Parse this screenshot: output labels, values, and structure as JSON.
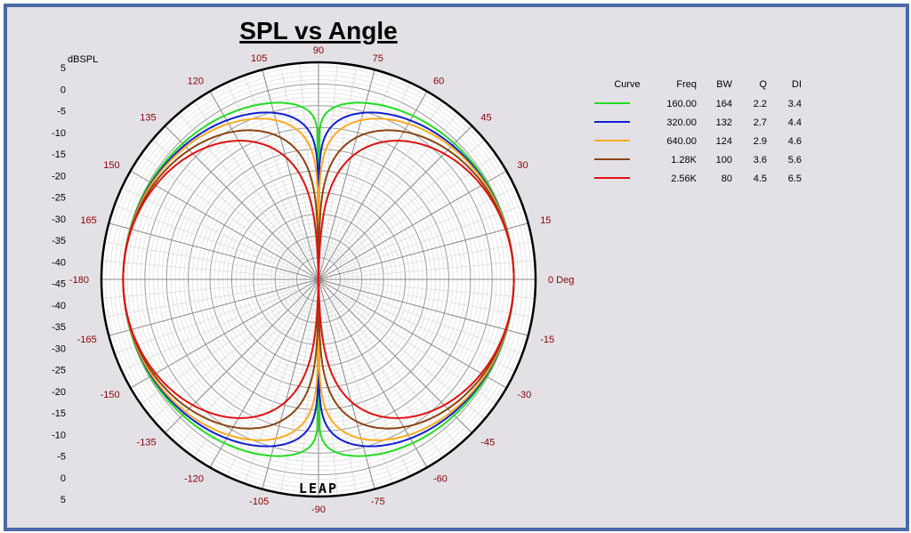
{
  "chart_data": {
    "type": "polar",
    "title": "SPL vs Angle",
    "ylabel": "dBSPL",
    "radial_range": [
      -45,
      5
    ],
    "radial_ticks": [
      "5",
      "0",
      "-5",
      "-10",
      "-15",
      "-20",
      "-25",
      "-30",
      "-35",
      "-40",
      "-45",
      "-40",
      "-35",
      "-30",
      "-25",
      "-20",
      "-15",
      "-10",
      "-5",
      "0",
      "5"
    ],
    "angle_labels": [
      {
        "deg": 0,
        "text": "0 Deg"
      },
      {
        "deg": 15,
        "text": "15"
      },
      {
        "deg": 30,
        "text": "30"
      },
      {
        "deg": 45,
        "text": "45"
      },
      {
        "deg": 60,
        "text": "60"
      },
      {
        "deg": 75,
        "text": "75"
      },
      {
        "deg": 90,
        "text": "90"
      },
      {
        "deg": 105,
        "text": "105"
      },
      {
        "deg": 120,
        "text": "120"
      },
      {
        "deg": 135,
        "text": "135"
      },
      {
        "deg": 150,
        "text": "150"
      },
      {
        "deg": 165,
        "text": "165"
      },
      {
        "deg": 180,
        "text": "-180"
      },
      {
        "deg": -165,
        "text": "-165"
      },
      {
        "deg": -150,
        "text": "-150"
      },
      {
        "deg": -135,
        "text": "-135"
      },
      {
        "deg": -120,
        "text": "-120"
      },
      {
        "deg": -105,
        "text": "-105"
      },
      {
        "deg": -90,
        "text": "-90"
      },
      {
        "deg": -75,
        "text": "-75"
      },
      {
        "deg": -60,
        "text": "-60"
      },
      {
        "deg": -45,
        "text": "-45"
      },
      {
        "deg": -30,
        "text": "-30"
      },
      {
        "deg": -15,
        "text": "-15"
      }
    ],
    "legend_headers": [
      "Curve",
      "Freq",
      "BW",
      "Q",
      "DI"
    ],
    "series": [
      {
        "color": "#22dd22",
        "freq": "160.00",
        "bw": "164",
        "q": "2.2",
        "di": "3.4",
        "on_axis_db": 0.0,
        "exponent": 0.25
      },
      {
        "color": "#1020d0",
        "freq": "320.00",
        "bw": "132",
        "q": "2.7",
        "di": "4.4",
        "on_axis_db": 0.0,
        "exponent": 0.45
      },
      {
        "color": "#ffaa22",
        "freq": "640.00",
        "bw": "124",
        "q": "2.9",
        "di": "4.6",
        "on_axis_db": 0.0,
        "exponent": 0.6
      },
      {
        "color": "#8b4513",
        "freq": "1.28K",
        "bw": "100",
        "q": "3.6",
        "di": "5.6",
        "on_axis_db": 0.0,
        "exponent": 0.95
      },
      {
        "color": "#e01010",
        "freq": "2.56K",
        "bw": "80",
        "q": "4.5",
        "di": "6.5",
        "on_axis_db": 0.0,
        "exponent": 1.35
      }
    ],
    "logo": "LEAP"
  }
}
